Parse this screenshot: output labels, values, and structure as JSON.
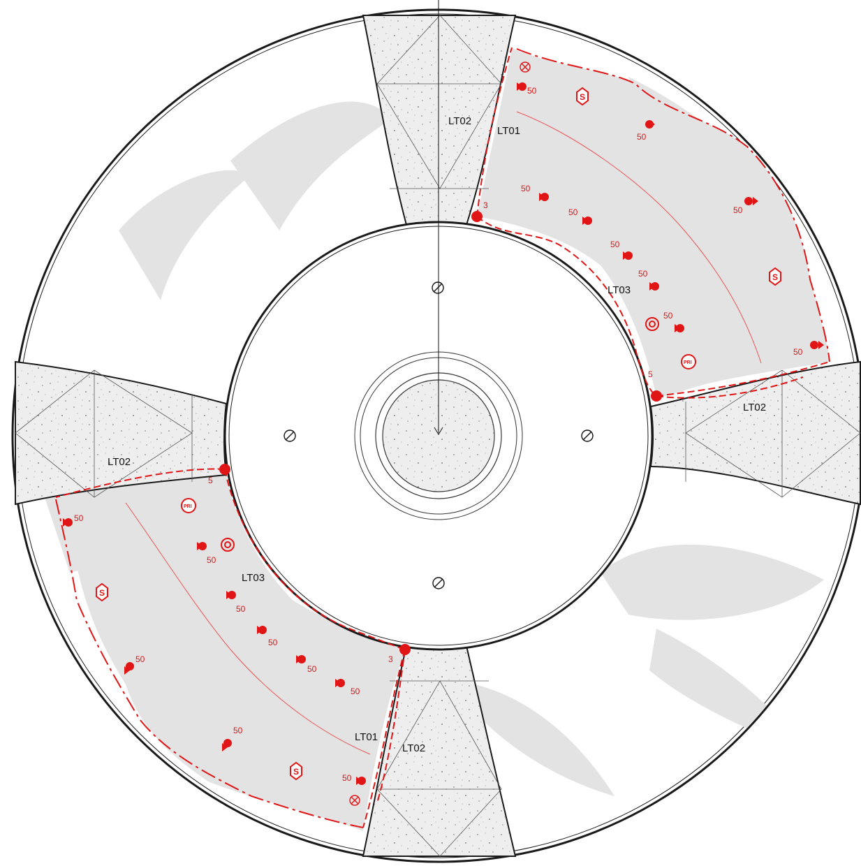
{
  "plan": {
    "zone_labels": {
      "lt01_top": "LT01",
      "lt02_top": "LT02",
      "lt02_right": "LT02",
      "lt03_right": "LT03",
      "lt02_left": "LT02",
      "lt03_left": "LT03",
      "lt01_bottom": "LT01",
      "lt02_bottom": "LT02"
    },
    "spray_radius_label": "50",
    "ring_valve_labels": {
      "top": "3",
      "right": "5",
      "left": "5",
      "bottom": "3"
    },
    "pri_label": "PRI",
    "sensor_label": "S",
    "colors": {
      "irrigation_red": "#e01515",
      "planting_grey": "#e3e3e3",
      "paving_fill": "#eeeeee",
      "linework": "#1a1a1a"
    }
  }
}
